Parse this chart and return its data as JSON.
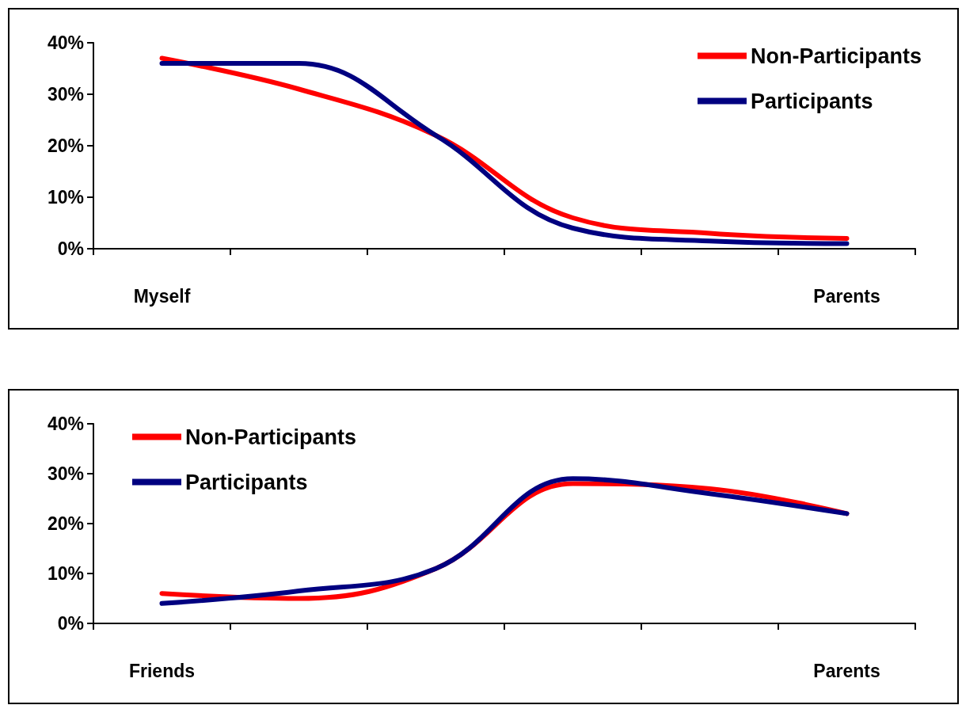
{
  "chart_data": [
    {
      "type": "line",
      "categories": [
        "Myself",
        null,
        null,
        null,
        null,
        "Parents"
      ],
      "ylim": [
        0,
        40
      ],
      "yticks": [
        {
          "value": 0,
          "label": "0%"
        },
        {
          "value": 10,
          "label": "10%"
        },
        {
          "value": 20,
          "label": "20%"
        },
        {
          "value": 30,
          "label": "30%"
        },
        {
          "value": 40,
          "label": "40%"
        }
      ],
      "grid": false,
      "legend": "top right",
      "marker": "none",
      "line_style": "solid",
      "series": [
        {
          "name": "Non-Participants",
          "color": "#ff0000",
          "values": [
            37,
            31,
            22,
            6,
            3,
            2
          ]
        },
        {
          "name": "Participants",
          "color": "#000080",
          "values": [
            36,
            36,
            22,
            4,
            1.5,
            1
          ]
        }
      ]
    },
    {
      "type": "line",
      "categories": [
        "Friends",
        null,
        null,
        null,
        null,
        "Parents"
      ],
      "ylim": [
        0,
        40
      ],
      "yticks": [
        {
          "value": 0,
          "label": "0%"
        },
        {
          "value": 10,
          "label": "10%"
        },
        {
          "value": 20,
          "label": "20%"
        },
        {
          "value": 30,
          "label": "30%"
        },
        {
          "value": 40,
          "label": "40%"
        }
      ],
      "grid": false,
      "legend": "top left",
      "marker": "none",
      "line_style": "solid",
      "series": [
        {
          "name": "Non-Participants",
          "color": "#ff0000",
          "values": [
            6,
            5,
            11,
            28,
            27,
            22
          ]
        },
        {
          "name": "Participants",
          "color": "#000080",
          "values": [
            4,
            6.5,
            11,
            29,
            26,
            22
          ]
        }
      ]
    }
  ]
}
